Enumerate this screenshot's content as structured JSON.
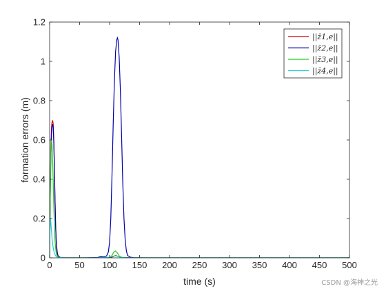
{
  "chart_data": {
    "type": "line",
    "xlabel": "time (s)",
    "ylabel": "formation errors (m)",
    "xlim": [
      0,
      500
    ],
    "ylim": [
      0,
      1.2
    ],
    "xticks": [
      0,
      50,
      100,
      150,
      200,
      250,
      300,
      350,
      400,
      450,
      500
    ],
    "yticks": [
      0,
      0.2,
      0.4,
      0.6,
      0.8,
      1,
      1.2
    ],
    "xtick_labels": [
      "0",
      "50",
      "100",
      "150",
      "200",
      "250",
      "300",
      "350",
      "400",
      "450",
      "500"
    ],
    "ytick_labels": [
      "0",
      "0.2",
      "0.4",
      "0.6",
      "0.8",
      "1",
      "1.2"
    ],
    "grid": false,
    "legend_position": "top-right",
    "series": [
      {
        "name": "||z̄1,e||",
        "color": "#cc0000",
        "x": [
          0,
          1,
          2,
          3,
          4,
          5,
          6,
          7,
          8,
          9,
          10,
          11,
          12,
          13,
          14,
          16,
          18,
          20,
          25,
          30,
          40,
          60,
          80,
          100,
          105,
          110,
          115,
          120,
          140,
          200,
          300,
          400,
          500
        ],
        "y": [
          0.0,
          0.35,
          0.55,
          0.66,
          0.69,
          0.7,
          0.68,
          0.6,
          0.45,
          0.3,
          0.17,
          0.09,
          0.05,
          0.025,
          0.012,
          0.005,
          0.002,
          0.001,
          0.0,
          0.0,
          0.0,
          0.0,
          0.0,
          0.0,
          0.005,
          0.012,
          0.006,
          0.002,
          0.0,
          0.0,
          0.0,
          0.0,
          0.0
        ]
      },
      {
        "name": "||z̄2,e||",
        "color": "#0000aa",
        "x": [
          0,
          1,
          2,
          3,
          4,
          5,
          6,
          7,
          8,
          9,
          10,
          11,
          12,
          13,
          14,
          16,
          18,
          20,
          25,
          40,
          60,
          80,
          85,
          90,
          95,
          98,
          100,
          102,
          104,
          106,
          108,
          110,
          112,
          113,
          114,
          116,
          118,
          120,
          122,
          124,
          126,
          128,
          130,
          135,
          140,
          160,
          200,
          300,
          400,
          500
        ],
        "y": [
          0.0,
          0.3,
          0.5,
          0.62,
          0.67,
          0.68,
          0.66,
          0.58,
          0.44,
          0.29,
          0.16,
          0.08,
          0.04,
          0.02,
          0.01,
          0.004,
          0.002,
          0.001,
          0.0,
          0.0,
          0.0,
          0.002,
          0.006,
          0.005,
          0.01,
          0.03,
          0.08,
          0.2,
          0.42,
          0.68,
          0.9,
          1.05,
          1.11,
          1.12,
          1.11,
          1.02,
          0.85,
          0.62,
          0.38,
          0.2,
          0.09,
          0.035,
          0.012,
          0.003,
          0.001,
          0.0,
          0.0,
          0.0,
          0.0,
          0.0
        ]
      },
      {
        "name": "||z̄3,e||",
        "color": "#22cc22",
        "x": [
          0,
          1,
          2,
          3,
          4,
          5,
          6,
          7,
          8,
          9,
          10,
          11,
          12,
          14,
          16,
          20,
          25,
          40,
          80,
          100,
          104,
          107,
          110,
          113,
          116,
          120,
          130,
          200,
          300,
          400,
          500
        ],
        "y": [
          0.0,
          0.3,
          0.52,
          0.6,
          0.58,
          0.5,
          0.38,
          0.26,
          0.16,
          0.09,
          0.05,
          0.025,
          0.012,
          0.005,
          0.002,
          0.001,
          0.0,
          0.0,
          0.0,
          0.002,
          0.012,
          0.03,
          0.035,
          0.025,
          0.01,
          0.003,
          0.0,
          0.0,
          0.0,
          0.0,
          0.0
        ]
      },
      {
        "name": "||z̄4,e||",
        "color": "#22cccc",
        "x": [
          0,
          0.5,
          1,
          1.5,
          2,
          3,
          4,
          5,
          6,
          7,
          8,
          9,
          10,
          12,
          14,
          16,
          20,
          25,
          40,
          80,
          100,
          105,
          110,
          115,
          120,
          130,
          200,
          300,
          400,
          500
        ],
        "y": [
          0.0,
          0.12,
          0.19,
          0.2,
          0.18,
          0.14,
          0.1,
          0.07,
          0.05,
          0.035,
          0.024,
          0.016,
          0.01,
          0.005,
          0.003,
          0.002,
          0.001,
          0.0,
          0.0,
          0.0,
          0.003,
          0.008,
          0.01,
          0.006,
          0.002,
          0.0,
          0.0,
          0.0,
          0.0,
          0.0
        ]
      }
    ]
  },
  "watermark": "CSDN @海神之光"
}
